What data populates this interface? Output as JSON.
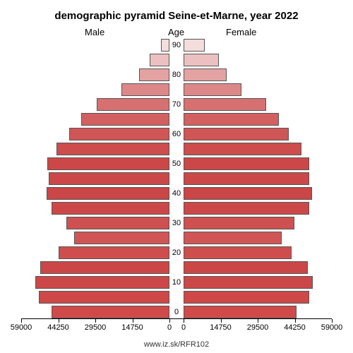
{
  "chart": {
    "type": "population-pyramid",
    "title": "demographic pyramid Seine-et-Marne, year 2022",
    "sub_male": "Male",
    "sub_age": "Age",
    "sub_female": "Female",
    "footer": "www.iz.sk/RFR102",
    "title_fontsize": 15,
    "label_fontsize": 13,
    "tick_fontsize": 11,
    "background_color": "#ffffff",
    "border_color": "#555555",
    "x_max": 59000,
    "age_ticks": [
      0,
      10,
      20,
      30,
      40,
      50,
      60,
      70,
      80,
      90
    ],
    "x_ticks_male": [
      59000,
      44250,
      29500,
      14750,
      0
    ],
    "x_ticks_female": [
      0,
      14750,
      29500,
      44250,
      59000
    ],
    "bars": [
      {
        "age": 0,
        "male": 47000,
        "female": 45000,
        "color": "#d04a4a"
      },
      {
        "age": 5,
        "male": 52000,
        "female": 50000,
        "color": "#ce4848"
      },
      {
        "age": 10,
        "male": 53500,
        "female": 51500,
        "color": "#cc4747"
      },
      {
        "age": 15,
        "male": 51500,
        "female": 49500,
        "color": "#cb4747"
      },
      {
        "age": 20,
        "male": 44000,
        "female": 43000,
        "color": "#ce4e4e"
      },
      {
        "age": 25,
        "male": 38000,
        "female": 39000,
        "color": "#d05656"
      },
      {
        "age": 30,
        "male": 41000,
        "female": 44000,
        "color": "#cf5050"
      },
      {
        "age": 35,
        "male": 47000,
        "female": 50000,
        "color": "#cc4848"
      },
      {
        "age": 40,
        "male": 49000,
        "female": 51000,
        "color": "#cb4646"
      },
      {
        "age": 45,
        "male": 48000,
        "female": 50000,
        "color": "#cc4848"
      },
      {
        "age": 50,
        "male": 48500,
        "female": 50000,
        "color": "#cc4747"
      },
      {
        "age": 55,
        "male": 45000,
        "female": 47000,
        "color": "#cd4c4c"
      },
      {
        "age": 60,
        "male": 40000,
        "female": 42000,
        "color": "#d05656"
      },
      {
        "age": 65,
        "male": 35000,
        "female": 38000,
        "color": "#d36060"
      },
      {
        "age": 70,
        "male": 29000,
        "female": 33000,
        "color": "#d77070"
      },
      {
        "age": 75,
        "male": 19000,
        "female": 23000,
        "color": "#dd8888"
      },
      {
        "age": 80,
        "male": 12000,
        "female": 17000,
        "color": "#e4a2a2"
      },
      {
        "age": 85,
        "male": 8000,
        "female": 14000,
        "color": "#ecc0c0"
      },
      {
        "age": 90,
        "male": 3500,
        "female": 8500,
        "color": "#f4dddd"
      }
    ]
  }
}
